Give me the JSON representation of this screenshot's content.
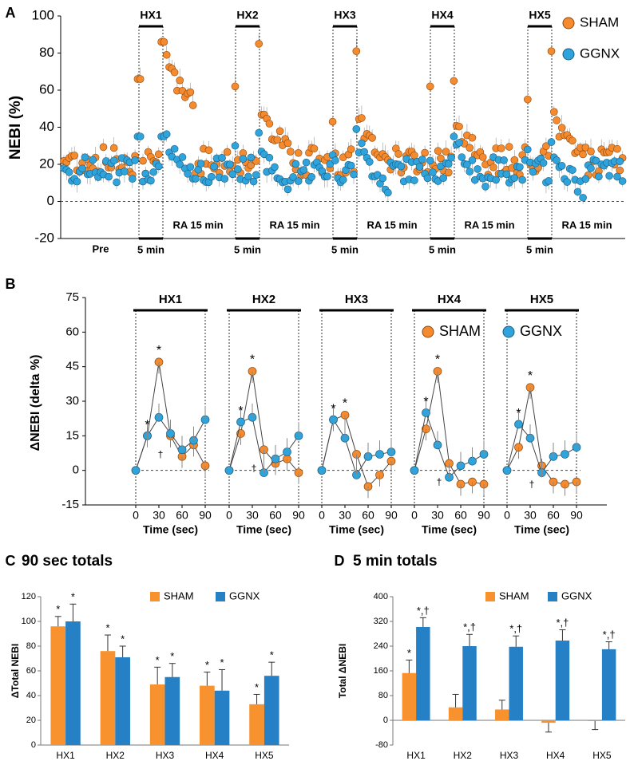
{
  "colors": {
    "sham": "#F58A2E",
    "ggnx": "#2FA3DB",
    "bar_sham": "#F7922E",
    "bar_ggnx": "#2680C6",
    "edge": "#555555",
    "axis": "#000000"
  },
  "chart_data": [
    {
      "panel": "A",
      "type": "scatter",
      "ylabel": "NEBI (%)",
      "ylim": [
        -20,
        100
      ],
      "yticks": [
        -20,
        0,
        20,
        40,
        60,
        80,
        100
      ],
      "legend": [
        "SHAM",
        "GGNX"
      ],
      "legend_position": "top-right",
      "hx_labels": [
        "HX1",
        "HX2",
        "HX3",
        "HX4",
        "HX5"
      ],
      "period_labels": [
        "Pre",
        "5 min",
        "RA 15 min"
      ],
      "sham_baseline": 22,
      "ggnx_baseline": 17,
      "sham_peaks": [
        [
          66,
          86,
          80,
          72
        ],
        [
          62,
          85,
          50,
          45
        ],
        [
          43,
          81,
          47,
          40
        ],
        [
          62,
          65,
          42,
          40
        ],
        [
          55,
          81,
          45,
          42
        ]
      ],
      "ggnx_peaks": [
        [
          35,
          35,
          33,
          30
        ],
        [
          30,
          37,
          27,
          25
        ],
        [
          25,
          39,
          28,
          26
        ],
        [
          22,
          35,
          30,
          28
        ],
        [
          28,
          32,
          26,
          24
        ]
      ]
    },
    {
      "panel": "B",
      "type": "line",
      "ylabel": "ΔNEBI (delta %)",
      "xlabel": "Time (sec)",
      "ylim": [
        -15,
        75
      ],
      "yticks": [
        -15,
        0,
        15,
        30,
        45,
        60,
        75
      ],
      "x": [
        0,
        15,
        30,
        45,
        60,
        75,
        90
      ],
      "xticks": [
        0,
        30,
        60,
        90
      ],
      "legend": [
        "SHAM",
        "GGNX"
      ],
      "groups": [
        {
          "title": "HX1",
          "sham": [
            0,
            15,
            47,
            15,
            6,
            11,
            2
          ],
          "ggnx": [
            0,
            15,
            23,
            16,
            9,
            13,
            22
          ]
        },
        {
          "title": "HX2",
          "sham": [
            0,
            16,
            43,
            9,
            3,
            5,
            -1
          ],
          "ggnx": [
            0,
            21,
            23,
            -1,
            5,
            8,
            15
          ]
        },
        {
          "title": "HX3",
          "sham": [
            0,
            22,
            24,
            7,
            -7,
            -2,
            4
          ],
          "ggnx": [
            0,
            22,
            14,
            -2,
            6,
            7,
            8
          ]
        },
        {
          "title": "HX4",
          "sham": [
            0,
            18,
            43,
            3,
            -6,
            -5,
            -6
          ],
          "ggnx": [
            0,
            25,
            11,
            -3,
            2,
            4,
            7
          ]
        },
        {
          "title": "HX5",
          "sham": [
            0,
            10,
            36,
            2,
            -5,
            -6,
            -5
          ],
          "ggnx": [
            0,
            20,
            14,
            -1,
            6,
            7,
            10
          ]
        }
      ],
      "annotations": [
        "*",
        "†"
      ]
    },
    {
      "panel": "C",
      "type": "bar",
      "title": "90 sec totals",
      "ylabel": "ΔTotal NEBI",
      "ylim": [
        0,
        120
      ],
      "yticks": [
        0,
        20,
        40,
        60,
        80,
        100,
        120
      ],
      "categories": [
        "HX1",
        "HX2",
        "HX3",
        "HX4",
        "HX5"
      ],
      "series": [
        {
          "name": "SHAM",
          "values": [
            96,
            76,
            49,
            48,
            33
          ],
          "errors": [
            8,
            13,
            14,
            11,
            8
          ],
          "labels": [
            "*",
            "*",
            "*",
            "*",
            "*"
          ]
        },
        {
          "name": "GGNX",
          "values": [
            100,
            71,
            55,
            44,
            56
          ],
          "errors": [
            14,
            9,
            11,
            17,
            11
          ],
          "labels": [
            "*",
            "*",
            "*",
            "*",
            "*"
          ]
        }
      ]
    },
    {
      "panel": "D",
      "type": "bar",
      "title": "5 min totals",
      "ylabel": "Total ΔNEBI",
      "ylim": [
        -80,
        400
      ],
      "yticks": [
        -80,
        0,
        80,
        160,
        240,
        320,
        400
      ],
      "categories": [
        "HX1",
        "HX2",
        "HX3",
        "HX4",
        "HX5"
      ],
      "series": [
        {
          "name": "SHAM",
          "values": [
            153,
            42,
            35,
            -8,
            -2
          ],
          "errors": [
            42,
            42,
            30,
            30,
            28
          ],
          "labels": [
            "*",
            "",
            "",
            "",
            ""
          ]
        },
        {
          "name": "GGNX",
          "values": [
            302,
            240,
            238,
            258,
            230
          ],
          "errors": [
            30,
            38,
            35,
            35,
            24
          ],
          "labels": [
            "*,†",
            "*,†",
            "*,†",
            "*,†",
            "*,†"
          ]
        }
      ]
    }
  ]
}
